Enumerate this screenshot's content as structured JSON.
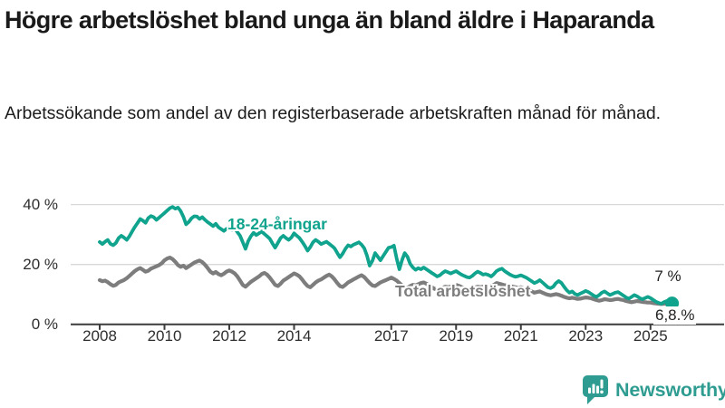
{
  "header": {
    "title": "Högre arbetslöshet bland unga än bland äldre i Haparanda",
    "subtitle": "Arbetssökande som andel av den registerbaserade arbetskraften månad för månad."
  },
  "colors": {
    "young": "#10a38d",
    "total": "#7d7d7d",
    "axis": "#3c3c3c",
    "gridline": "#d9d9d9",
    "brand": "#2f9c92"
  },
  "chart": {
    "y_axis": [
      {
        "label": "40 %",
        "value": 40
      },
      {
        "label": "20 %",
        "value": 20
      },
      {
        "label": "0 %",
        "value": 0
      }
    ],
    "end_labels": {
      "young": "7 %",
      "total": "6,8.%"
    }
  },
  "chart_data": {
    "type": "line",
    "title": "Högre arbetslöshet bland unga än bland äldre i Haparanda",
    "subtitle": "Arbetssökande som andel av den registerbaserade arbetskraften månad för månad.",
    "x_start": "2008-01",
    "x_end": "2025-09",
    "x_tick_years": [
      2008,
      2010,
      2012,
      2014,
      2017,
      2019,
      2021,
      2023,
      2025
    ],
    "ylim": [
      0,
      43
    ],
    "y_gridlines": [
      0,
      20,
      40
    ],
    "legend_position": "inline-labels",
    "grid": true,
    "series": [
      {
        "name": "18-24-åringar",
        "color": "#10a38d",
        "end_value_label": "7 %",
        "values": [
          27.5,
          26.8,
          27.6,
          28.2,
          26.9,
          26.4,
          27.2,
          28.8,
          29.6,
          29.0,
          28.2,
          29.4,
          31.0,
          32.5,
          33.8,
          35.2,
          34.6,
          33.9,
          35.5,
          36.2,
          35.8,
          34.9,
          35.6,
          36.4,
          37.2,
          38.0,
          38.8,
          39.2,
          38.6,
          39.0,
          37.8,
          35.9,
          33.4,
          34.2,
          35.4,
          36.1,
          36.0,
          35.2,
          35.8,
          34.9,
          34.1,
          33.5,
          32.8,
          33.6,
          32.4,
          31.8,
          31.2,
          31.9,
          32.4,
          31.6,
          32.2,
          30.8,
          29.6,
          27.4,
          25.2,
          27.8,
          29.4,
          30.6,
          29.8,
          30.4,
          31.0,
          30.2,
          29.4,
          28.6,
          27.0,
          25.6,
          27.2,
          28.8,
          29.6,
          28.8,
          28.2,
          29.0,
          30.4,
          29.6,
          28.8,
          27.6,
          26.2,
          24.6,
          25.8,
          27.4,
          28.2,
          27.6,
          26.8,
          27.2,
          27.6,
          26.9,
          26.2,
          25.4,
          23.8,
          22.4,
          23.6,
          25.2,
          26.4,
          26.0,
          26.6,
          27.0,
          27.4,
          26.6,
          25.4,
          23.0,
          19.6,
          21.2,
          23.8,
          22.6,
          21.4,
          22.8,
          24.2,
          25.6,
          25.8,
          26.3,
          22.0,
          18.4,
          21.5,
          23.8,
          22.6,
          20.2,
          19.0,
          18.2,
          18.8,
          18.4,
          19.0,
          18.4,
          17.8,
          17.2,
          16.6,
          16.0,
          16.4,
          17.2,
          17.8,
          17.4,
          17.0,
          17.4,
          17.8,
          17.2,
          16.6,
          16.2,
          15.8,
          15.6,
          16.2,
          17.0,
          17.6,
          17.2,
          16.6,
          16.8,
          16.5,
          16.0,
          16.8,
          17.8,
          18.3,
          18.6,
          17.8,
          17.2,
          16.6,
          16.2,
          15.9,
          16.1,
          16.4,
          16.0,
          15.6,
          15.0,
          14.4,
          13.8,
          14.2,
          14.8,
          14.0,
          13.2,
          12.4,
          12.1,
          12.6,
          13.8,
          14.5,
          13.9,
          12.6,
          11.4,
          10.6,
          11.0,
          10.2,
          9.8,
          10.3,
          10.7,
          11.2,
          10.8,
          10.2,
          9.6,
          9.2,
          9.8,
          10.6,
          11.0,
          10.4,
          9.8,
          10.2,
          10.6,
          10.8,
          10.2,
          9.6,
          9.0,
          8.6,
          9.2,
          9.8,
          9.4,
          8.8,
          8.4,
          8.8,
          9.2,
          8.8,
          8.2,
          7.6,
          7.2,
          6.9,
          7.4,
          7.8,
          7.3,
          7.0
        ]
      },
      {
        "name": "Total arbetslöshet",
        "color": "#7d7d7d",
        "end_value_label": "6,8.%",
        "values": [
          14.8,
          14.4,
          14.6,
          14.1,
          13.4,
          12.9,
          13.2,
          14.0,
          14.4,
          14.8,
          15.4,
          16.2,
          17.0,
          17.8,
          18.4,
          18.8,
          18.2,
          17.6,
          17.9,
          18.6,
          19.0,
          19.4,
          19.8,
          20.4,
          21.4,
          22.0,
          22.3,
          21.8,
          20.9,
          19.8,
          19.2,
          19.6,
          18.8,
          19.4,
          20.0,
          20.6,
          21.0,
          21.3,
          20.8,
          19.9,
          18.8,
          17.6,
          17.0,
          17.5,
          16.8,
          16.4,
          16.9,
          17.6,
          18.0,
          17.6,
          17.0,
          16.0,
          14.6,
          13.2,
          12.6,
          13.4,
          14.2,
          14.8,
          15.4,
          16.0,
          16.8,
          17.2,
          16.6,
          15.6,
          14.4,
          13.2,
          12.8,
          13.6,
          14.6,
          15.2,
          15.8,
          16.4,
          17.0,
          16.6,
          16.0,
          15.0,
          13.8,
          12.8,
          12.4,
          13.2,
          14.0,
          14.6,
          15.0,
          15.6,
          16.2,
          16.6,
          16.0,
          15.0,
          13.8,
          12.8,
          12.5,
          13.2,
          14.0,
          14.5,
          15.0,
          15.5,
          16.0,
          16.4,
          15.8,
          14.8,
          13.8,
          13.0,
          12.8,
          13.4,
          14.0,
          14.4,
          14.8,
          15.2,
          15.6,
          15.2,
          14.6,
          13.8,
          13.0,
          12.4,
          12.2,
          12.8,
          13.2,
          13.0,
          13.4,
          13.8,
          14.0,
          13.6,
          13.0,
          12.4,
          11.9,
          11.6,
          11.8,
          12.2,
          12.6,
          12.4,
          12.6,
          12.9,
          13.2,
          12.9,
          12.5,
          12.1,
          11.8,
          11.6,
          11.9,
          12.3,
          12.6,
          12.4,
          12.6,
          12.8,
          13.0,
          12.8,
          13.2,
          13.8,
          13.6,
          13.3,
          13.0,
          13.2,
          12.9,
          12.6,
          12.4,
          12.2,
          12.4,
          12.2,
          11.9,
          11.5,
          11.0,
          10.6,
          10.8,
          11.0,
          10.6,
          10.2,
          9.9,
          9.7,
          9.9,
          10.1,
          9.9,
          9.6,
          9.2,
          8.9,
          8.7,
          8.9,
          8.7,
          8.5,
          8.6,
          8.8,
          9.0,
          8.9,
          8.7,
          8.4,
          8.1,
          7.9,
          8.1,
          8.4,
          8.3,
          8.1,
          8.2,
          8.4,
          8.5,
          8.3,
          8.1,
          7.8,
          7.6,
          7.4,
          7.6,
          7.8,
          7.7,
          7.5,
          7.4,
          7.3,
          7.3,
          7.1,
          7.0,
          6.9,
          6.8,
          6.9,
          7.0,
          6.9,
          6.8
        ]
      }
    ]
  },
  "footer": {
    "brand": "Newsworthy"
  }
}
